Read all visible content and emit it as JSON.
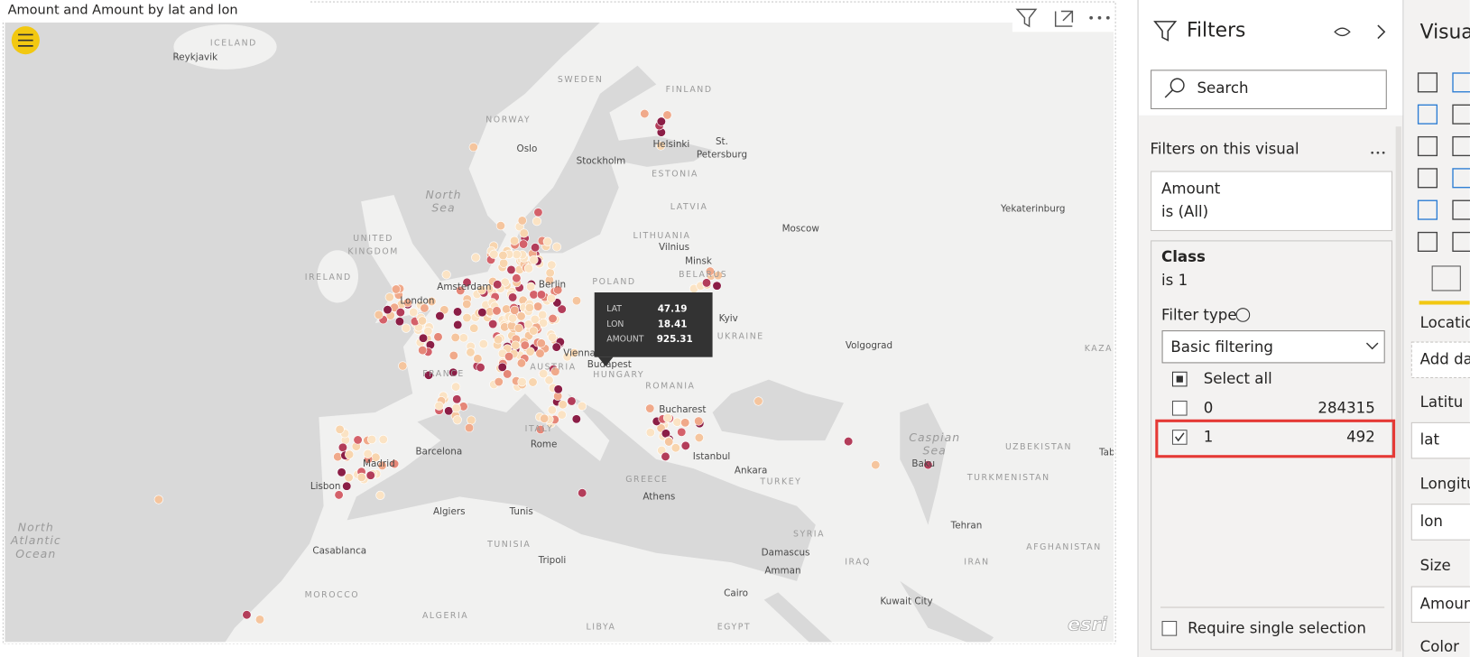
{
  "visual": {
    "title": "Amount and Amount by lat and lon",
    "map_labels": [
      "ICELAND",
      "Reykjavik",
      "SWEDEN",
      "FINLAND",
      "NORWAY",
      "Oslo",
      "Helsinki",
      "St. Petersburg",
      "Stockholm",
      "ESTONIA",
      "North Sea",
      "LATVIA",
      "LITHUANIA",
      "Vilnius",
      "Moscow",
      "Yekaterinburg",
      "UNITED KINGDOM",
      "Minsk",
      "BELARUS",
      "IRELAND",
      "Amsterdam",
      "Berlin",
      "POLAND",
      "London",
      "Kyiv",
      "UKRAINE",
      "Vienna",
      "Budapest",
      "Volgograd",
      "KAZA",
      "FRANCE",
      "AUSTRIA",
      "HUNGARY",
      "ROMANIA",
      "Bucharest",
      "Madrid",
      "Barcelona",
      "Rome",
      "ITALY",
      "Istanbul",
      "Ankara",
      "TURKEY",
      "GREECE",
      "Athens",
      "Lisbon",
      "Algiers",
      "Tunis",
      "Caspian Sea",
      "Baku",
      "TURKMENISTAN",
      "UZBEKISTAN",
      "Tehran",
      "SYRIA",
      "Damascus",
      "Amman",
      "IRAQ",
      "IRAN",
      "AFGHANISTAN",
      "North Atlantic Ocean",
      "Casablanca",
      "Tripoli",
      "TUNISIA",
      "MOROCCO",
      "ALGERIA",
      "LIBYA",
      "EGYPT",
      "Cairo",
      "Kuwait City",
      "Tab"
    ],
    "tooltip": {
      "lat_label": "LAT",
      "lat": 47.19,
      "lon_label": "LON",
      "lon": 18.41,
      "amount_label": "AMOUNT",
      "amount": 925.31
    },
    "attribution": "esri"
  },
  "filters_pane": {
    "title": "Filters",
    "search": "Search",
    "section": "Filters on this visual",
    "cards": [
      {
        "field": "Amount",
        "state": "is (All)"
      },
      {
        "field": "Class",
        "state": "is 1",
        "filter_type_label": "Filter type",
        "filter_type": "Basic filtering",
        "select_all": "Select all",
        "options": [
          {
            "label": "0",
            "count": 284315
          },
          {
            "label": "1",
            "count": 492
          }
        ]
      }
    ],
    "require_single": "Require single selection"
  },
  "visualizations_pane": {
    "title": "Visua",
    "fields": [
      "Locatio",
      "Add da",
      "Latitu",
      "lat",
      "Longitu",
      "lon",
      "Size",
      "Amoun",
      "Color"
    ]
  }
}
